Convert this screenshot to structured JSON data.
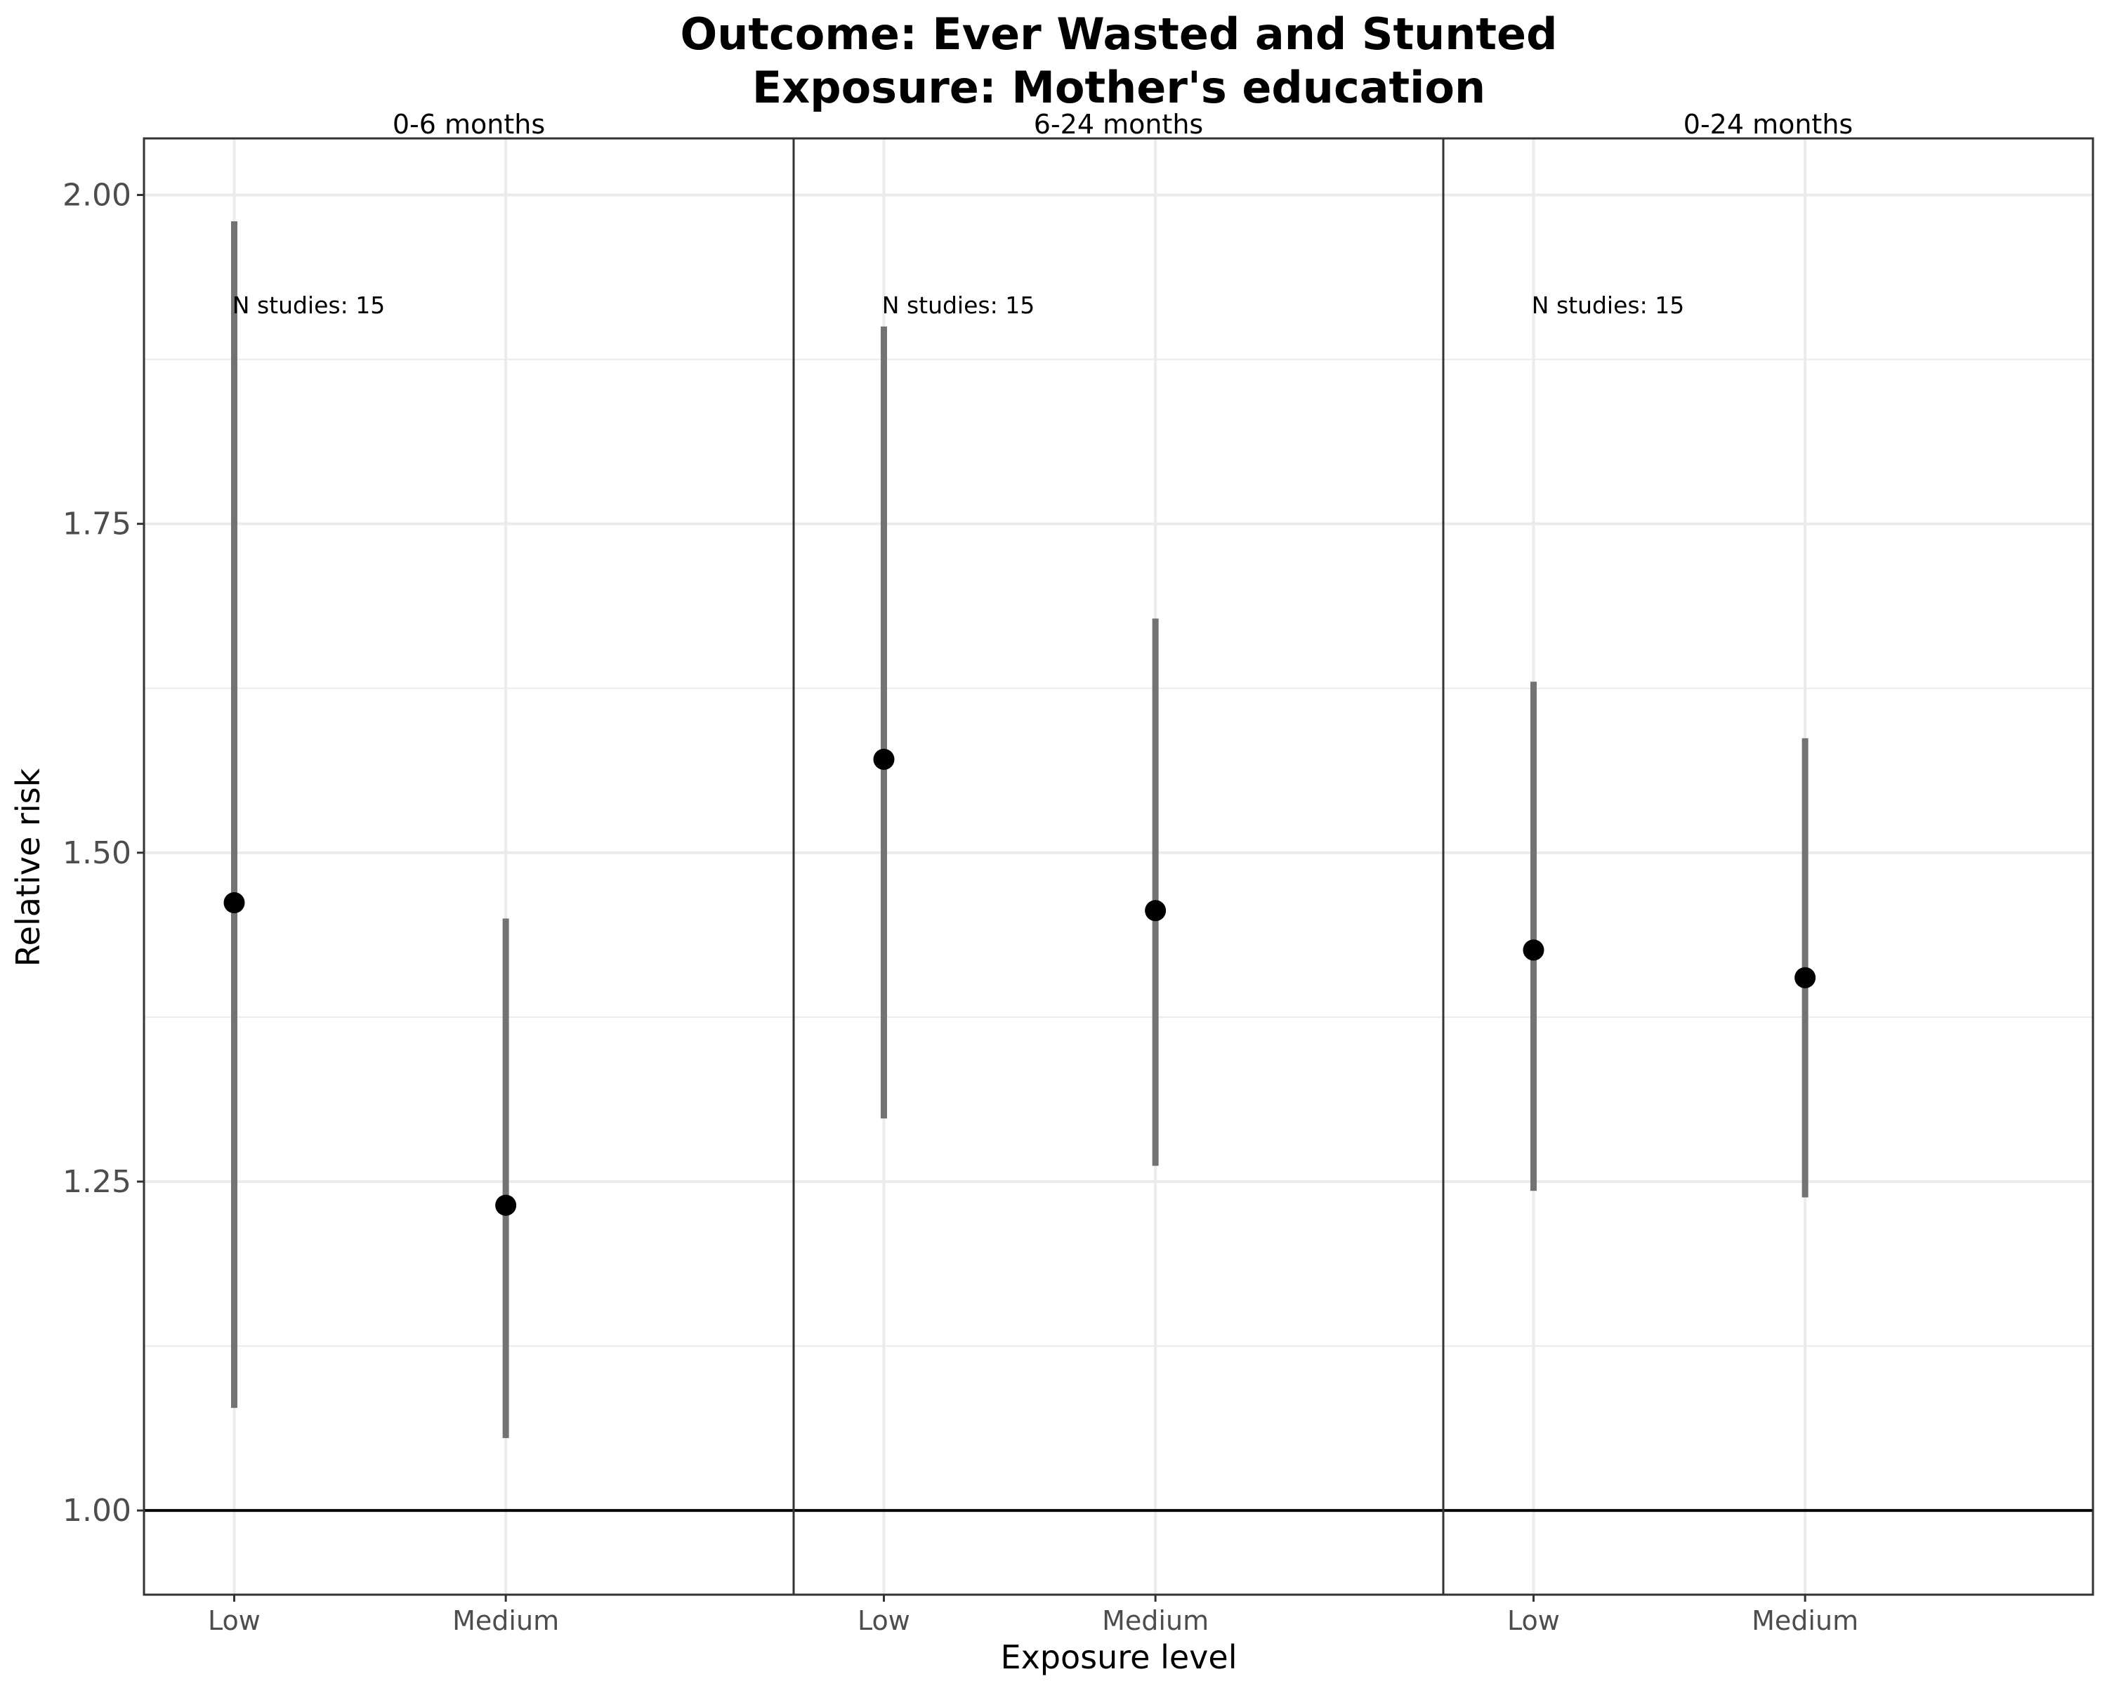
{
  "chart_data": {
    "type": "scatter",
    "title_lines": [
      "Outcome: Ever Wasted and Stunted",
      "Exposure: Mother's education"
    ],
    "xlabel": "Exposure level",
    "ylabel": "Relative risk",
    "ylim": [
      0.936,
      2.043
    ],
    "yticks": [
      1.0,
      1.25,
      1.5,
      1.75,
      2.0
    ],
    "ytick_labels": [
      "1.00",
      "1.25",
      "1.50",
      "1.75",
      "2.00"
    ],
    "yminor": [
      1.125,
      1.375,
      1.625,
      1.875
    ],
    "reference_line": 1.0,
    "grid": true,
    "categories": [
      "Low",
      "Medium"
    ],
    "colors": {
      "point": "#000000",
      "interval": "#737373",
      "grid": "#ebebeb",
      "border": "#333333"
    },
    "panels": [
      {
        "strip": "0-6 months",
        "annotation": "N studies: 15",
        "points": [
          {
            "x": "Low",
            "estimate": 1.462,
            "lower": 1.078,
            "upper": 1.98
          },
          {
            "x": "Medium",
            "estimate": 1.232,
            "lower": 1.055,
            "upper": 1.45
          }
        ]
      },
      {
        "strip": "6-24 months",
        "annotation": "N studies: 15",
        "points": [
          {
            "x": "Low",
            "estimate": 1.571,
            "lower": 1.298,
            "upper": 1.9
          },
          {
            "x": "Medium",
            "estimate": 1.456,
            "lower": 1.262,
            "upper": 1.678
          }
        ]
      },
      {
        "strip": "0-24 months",
        "annotation": "N studies: 15",
        "points": [
          {
            "x": "Low",
            "estimate": 1.426,
            "lower": 1.243,
            "upper": 1.63
          },
          {
            "x": "Medium",
            "estimate": 1.405,
            "lower": 1.238,
            "upper": 1.587
          }
        ]
      }
    ]
  }
}
